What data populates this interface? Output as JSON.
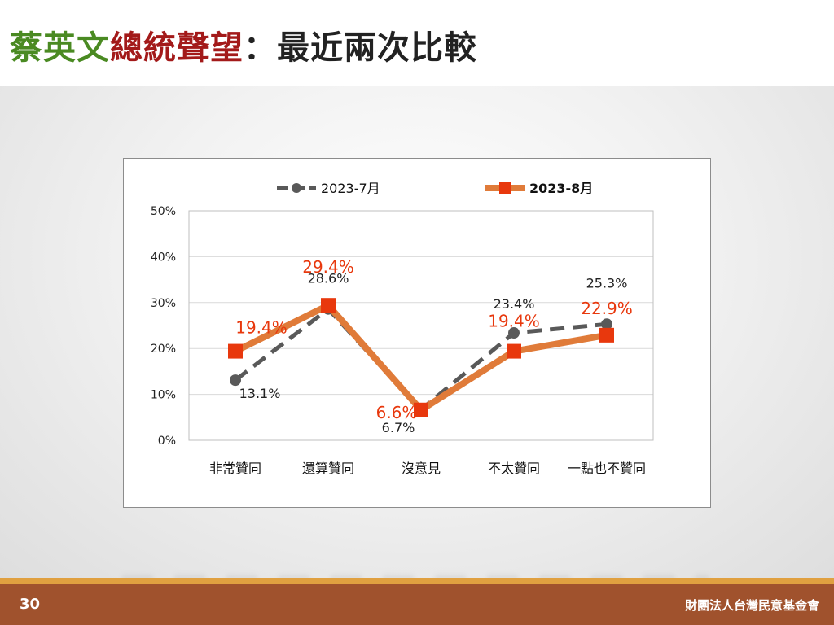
{
  "slide": {
    "title_parts": [
      {
        "text": "蔡英文",
        "color": "#4a8a22"
      },
      {
        "text": "總統聲望",
        "color": "#a31a1a"
      },
      {
        "text": "：最近兩次比較",
        "color": "#222222"
      }
    ],
    "page_number": "30",
    "organization": "財團法人台灣民意基金會"
  },
  "chart_data": {
    "type": "line",
    "categories": [
      "非常贊同",
      "還算贊同",
      "沒意見",
      "不太贊同",
      "一點也不贊同"
    ],
    "series": [
      {
        "name": "2023-7月",
        "values": [
          13.1,
          28.6,
          6.7,
          23.4,
          25.3
        ],
        "labels": [
          "13.1%",
          "28.6%",
          "6.7%",
          "23.4%",
          "25.3%"
        ],
        "color": "#595959",
        "marker": "circle",
        "dashed": true
      },
      {
        "name": "2023-8月",
        "values": [
          19.4,
          29.4,
          6.6,
          19.4,
          22.9
        ],
        "labels": [
          "19.4%",
          "29.4%",
          "6.6%",
          "19.4%",
          "22.9%"
        ],
        "color": "#e07b39",
        "marker_color": "#e8380d",
        "marker": "square",
        "dashed": false
      }
    ],
    "ylim": [
      0,
      50
    ],
    "yticks": [
      0,
      10,
      20,
      30,
      40,
      50
    ],
    "ytick_labels": [
      "0%",
      "10%",
      "20%",
      "30%",
      "40%",
      "50%"
    ],
    "xlabel": "",
    "ylabel": "",
    "grid": true,
    "legend": "top"
  }
}
